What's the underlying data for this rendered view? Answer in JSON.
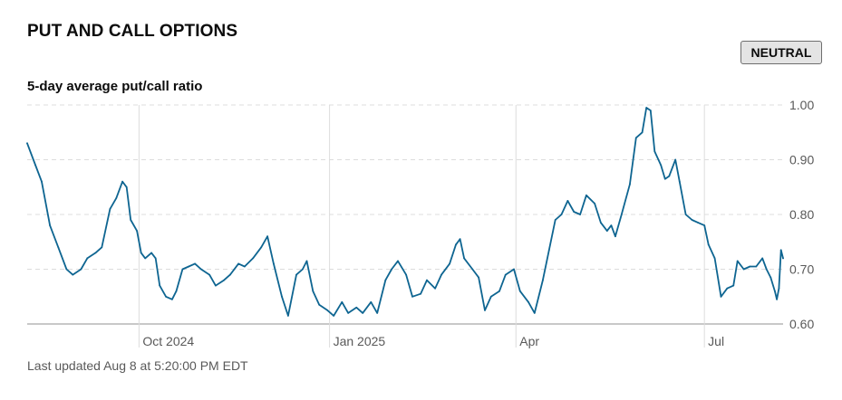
{
  "header": {
    "title": "PUT AND CALL OPTIONS",
    "badge": "NEUTRAL"
  },
  "footer": {
    "last_updated": "Last updated Aug 8 at 5:20:00 PM EDT"
  },
  "colors": {
    "line": "#0e6591",
    "grid": "#dcdcdc",
    "baseline": "#b5b5b5",
    "badge_bg": "#e4e4e4"
  },
  "chart_data": {
    "type": "line",
    "title": "5-day average put/call ratio",
    "ylim": [
      0.6,
      1.0
    ],
    "y_ticks": [
      {
        "value": 1.0,
        "label": "1.00"
      },
      {
        "value": 0.9,
        "label": "0.90"
      },
      {
        "value": 0.8,
        "label": "0.80"
      },
      {
        "value": 0.7,
        "label": "0.70"
      },
      {
        "value": 0.6,
        "label": "0.60"
      }
    ],
    "x_range": [
      "2024-08-08",
      "2025-08-08"
    ],
    "x_ticks": [
      {
        "date": "2024-10-01",
        "label": "Oct 2024"
      },
      {
        "date": "2025-01-01",
        "label": "Jan 2025"
      },
      {
        "date": "2025-04-01",
        "label": "Apr"
      },
      {
        "date": "2025-07-01",
        "label": "Jul"
      }
    ],
    "grid": "dashed horizontal, solid vertical",
    "series": [
      {
        "values": [
          [
            "2024-08-08",
            0.93
          ],
          [
            "2024-08-12",
            0.89
          ],
          [
            "2024-08-15",
            0.86
          ],
          [
            "2024-08-19",
            0.78
          ],
          [
            "2024-08-23",
            0.74
          ],
          [
            "2024-08-27",
            0.7
          ],
          [
            "2024-08-30",
            0.69
          ],
          [
            "2024-09-03",
            0.7
          ],
          [
            "2024-09-06",
            0.72
          ],
          [
            "2024-09-10",
            0.73
          ],
          [
            "2024-09-13",
            0.74
          ],
          [
            "2024-09-17",
            0.81
          ],
          [
            "2024-09-20",
            0.83
          ],
          [
            "2024-09-23",
            0.86
          ],
          [
            "2024-09-25",
            0.85
          ],
          [
            "2024-09-27",
            0.79
          ],
          [
            "2024-09-30",
            0.77
          ],
          [
            "2024-10-02",
            0.73
          ],
          [
            "2024-10-04",
            0.72
          ],
          [
            "2024-10-07",
            0.73
          ],
          [
            "2024-10-09",
            0.72
          ],
          [
            "2024-10-11",
            0.67
          ],
          [
            "2024-10-14",
            0.65
          ],
          [
            "2024-10-17",
            0.645
          ],
          [
            "2024-10-19",
            0.66
          ],
          [
            "2024-10-22",
            0.7
          ],
          [
            "2024-10-25",
            0.705
          ],
          [
            "2024-10-28",
            0.71
          ],
          [
            "2024-10-31",
            0.7
          ],
          [
            "2024-11-04",
            0.69
          ],
          [
            "2024-11-07",
            0.67
          ],
          [
            "2024-11-11",
            0.68
          ],
          [
            "2024-11-14",
            0.69
          ],
          [
            "2024-11-18",
            0.71
          ],
          [
            "2024-11-21",
            0.705
          ],
          [
            "2024-11-25",
            0.72
          ],
          [
            "2024-11-29",
            0.74
          ],
          [
            "2024-12-02",
            0.76
          ],
          [
            "2024-12-05",
            0.71
          ],
          [
            "2024-12-09",
            0.65
          ],
          [
            "2024-12-12",
            0.615
          ],
          [
            "2024-12-16",
            0.69
          ],
          [
            "2024-12-19",
            0.7
          ],
          [
            "2024-12-21",
            0.715
          ],
          [
            "2024-12-24",
            0.66
          ],
          [
            "2024-12-27",
            0.635
          ],
          [
            "2024-12-31",
            0.625
          ],
          [
            "2025-01-03",
            0.615
          ],
          [
            "2025-01-07",
            0.64
          ],
          [
            "2025-01-10",
            0.62
          ],
          [
            "2025-01-14",
            0.63
          ],
          [
            "2025-01-17",
            0.62
          ],
          [
            "2025-01-21",
            0.64
          ],
          [
            "2025-01-24",
            0.62
          ],
          [
            "2025-01-28",
            0.68
          ],
          [
            "2025-01-31",
            0.7
          ],
          [
            "2025-02-03",
            0.715
          ],
          [
            "2025-02-07",
            0.69
          ],
          [
            "2025-02-10",
            0.65
          ],
          [
            "2025-02-14",
            0.655
          ],
          [
            "2025-02-17",
            0.68
          ],
          [
            "2025-02-21",
            0.665
          ],
          [
            "2025-02-24",
            0.69
          ],
          [
            "2025-02-28",
            0.71
          ],
          [
            "2025-03-03",
            0.745
          ],
          [
            "2025-03-05",
            0.755
          ],
          [
            "2025-03-07",
            0.72
          ],
          [
            "2025-03-11",
            0.7
          ],
          [
            "2025-03-14",
            0.685
          ],
          [
            "2025-03-17",
            0.625
          ],
          [
            "2025-03-20",
            0.65
          ],
          [
            "2025-03-24",
            0.66
          ],
          [
            "2025-03-27",
            0.69
          ],
          [
            "2025-03-31",
            0.7
          ],
          [
            "2025-04-03",
            0.66
          ],
          [
            "2025-04-07",
            0.64
          ],
          [
            "2025-04-10",
            0.62
          ],
          [
            "2025-04-14",
            0.68
          ],
          [
            "2025-04-17",
            0.735
          ],
          [
            "2025-04-20",
            0.79
          ],
          [
            "2025-04-23",
            0.8
          ],
          [
            "2025-04-26",
            0.825
          ],
          [
            "2025-04-29",
            0.805
          ],
          [
            "2025-05-02",
            0.8
          ],
          [
            "2025-05-05",
            0.835
          ],
          [
            "2025-05-09",
            0.82
          ],
          [
            "2025-05-12",
            0.785
          ],
          [
            "2025-05-15",
            0.77
          ],
          [
            "2025-05-17",
            0.78
          ],
          [
            "2025-05-19",
            0.76
          ],
          [
            "2025-05-22",
            0.8
          ],
          [
            "2025-05-26",
            0.855
          ],
          [
            "2025-05-29",
            0.94
          ],
          [
            "2025-06-01",
            0.95
          ],
          [
            "2025-06-03",
            0.995
          ],
          [
            "2025-06-05",
            0.99
          ],
          [
            "2025-06-07",
            0.915
          ],
          [
            "2025-06-10",
            0.89
          ],
          [
            "2025-06-12",
            0.865
          ],
          [
            "2025-06-14",
            0.87
          ],
          [
            "2025-06-17",
            0.9
          ],
          [
            "2025-06-19",
            0.86
          ],
          [
            "2025-06-22",
            0.8
          ],
          [
            "2025-06-25",
            0.79
          ],
          [
            "2025-06-28",
            0.785
          ],
          [
            "2025-07-01",
            0.78
          ],
          [
            "2025-07-03",
            0.745
          ],
          [
            "2025-07-06",
            0.72
          ],
          [
            "2025-07-09",
            0.65
          ],
          [
            "2025-07-12",
            0.665
          ],
          [
            "2025-07-15",
            0.67
          ],
          [
            "2025-07-17",
            0.715
          ],
          [
            "2025-07-20",
            0.7
          ],
          [
            "2025-07-23",
            0.705
          ],
          [
            "2025-07-26",
            0.705
          ],
          [
            "2025-07-29",
            0.72
          ],
          [
            "2025-07-31",
            0.7
          ],
          [
            "2025-08-02",
            0.685
          ],
          [
            "2025-08-04",
            0.66
          ],
          [
            "2025-08-05",
            0.645
          ],
          [
            "2025-08-06",
            0.665
          ],
          [
            "2025-08-07",
            0.735
          ],
          [
            "2025-08-08",
            0.72
          ]
        ]
      }
    ]
  }
}
